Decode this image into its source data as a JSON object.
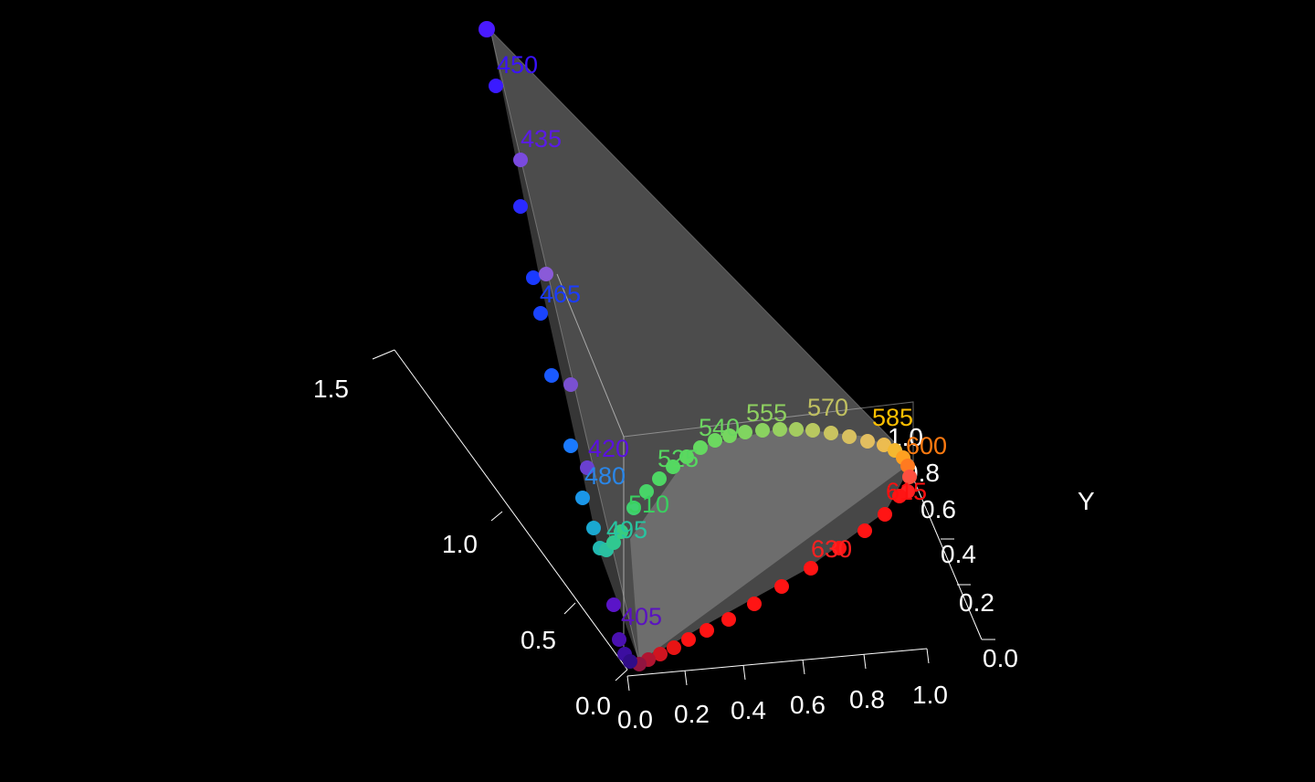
{
  "chart_data": {
    "type": "scatter3d",
    "title": "",
    "axes": {
      "x": {
        "label": "",
        "ticks": [
          "0.0",
          "0.2",
          "0.4",
          "0.6",
          "0.8",
          "1.0"
        ]
      },
      "y": {
        "label": "Y",
        "ticks": [
          "0.0",
          "0.2",
          "0.4",
          "0.6",
          "0.8",
          "1.0"
        ]
      },
      "z": {
        "label": "",
        "ticks": [
          "0.0",
          "0.5",
          "1.0",
          "1.5"
        ]
      }
    },
    "wavelength_labels": [
      {
        "wl": "450",
        "color": "#3a12ff"
      },
      {
        "wl": "435",
        "color": "#5a1ae8"
      },
      {
        "wl": "465",
        "color": "#1a3cff"
      },
      {
        "wl": "420",
        "color": "#5a10e0"
      },
      {
        "wl": "480",
        "color": "#2a86e8"
      },
      {
        "wl": "510",
        "color": "#3ad060"
      },
      {
        "wl": "495",
        "color": "#28c4a0"
      },
      {
        "wl": "525",
        "color": "#56d860"
      },
      {
        "wl": "540",
        "color": "#6cd660"
      },
      {
        "wl": "555",
        "color": "#8ed060"
      },
      {
        "wl": "570",
        "color": "#c0c060"
      },
      {
        "wl": "585",
        "color": "#ffc000"
      },
      {
        "wl": "600",
        "color": "#ff7a10"
      },
      {
        "wl": "615",
        "color": "#ff1010"
      },
      {
        "wl": "630",
        "color": "#ff2020"
      },
      {
        "wl": "405",
        "color": "#5a12c0"
      }
    ],
    "surface_color": "#8a8a8a",
    "background": "#000000"
  }
}
